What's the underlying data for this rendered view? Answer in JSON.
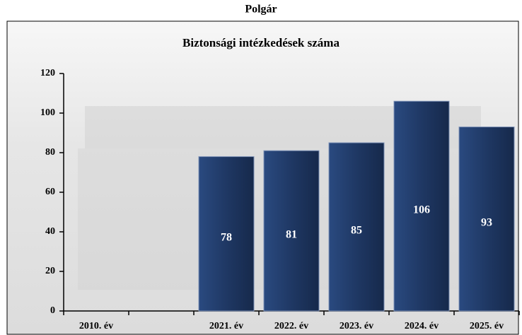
{
  "chart_data": {
    "type": "bar",
    "title": "Polgár",
    "subtitle": "Biztonsági intézkedések száma",
    "categories": [
      "2010. év",
      null,
      "2021. év",
      "2022. év",
      "2023. év",
      "2024. év",
      "2025. év"
    ],
    "values": [
      null,
      null,
      78,
      81,
      85,
      106,
      93
    ],
    "color": "#1f3864",
    "ylim": [
      0,
      120
    ],
    "yticks": [
      0,
      20,
      40,
      60,
      80,
      100,
      120
    ],
    "grid": false
  }
}
